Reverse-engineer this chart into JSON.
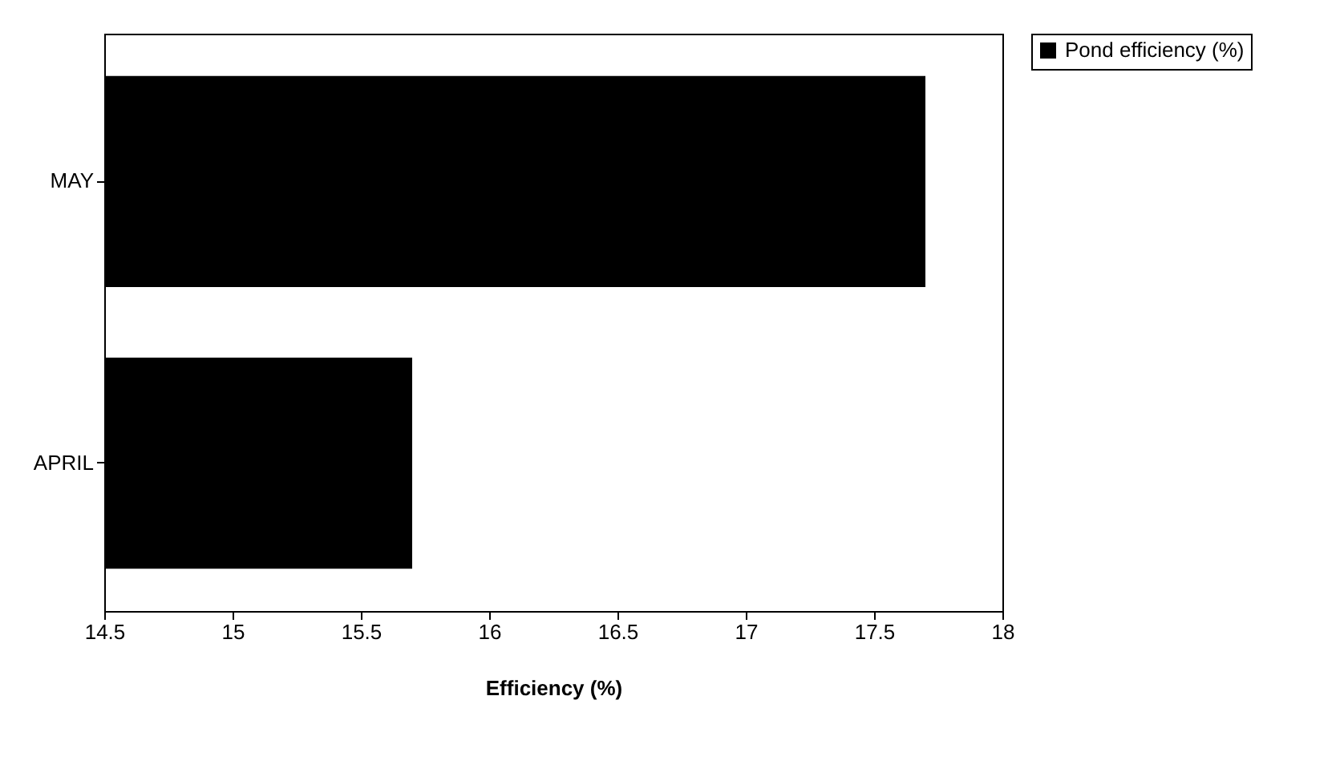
{
  "chart_data": {
    "type": "bar",
    "orientation": "horizontal",
    "xlabel": "Efficiency (%)",
    "categories": [
      "MAY",
      "APRIL"
    ],
    "series": [
      {
        "name": "Pond efficiency (%)",
        "color": "#000000",
        "values": [
          17.7,
          15.7
        ]
      }
    ],
    "xlim": [
      14.5,
      18
    ],
    "xticks": [
      14.5,
      15,
      15.5,
      16,
      16.5,
      17,
      17.5,
      18
    ],
    "grid": false,
    "legend": "right"
  }
}
